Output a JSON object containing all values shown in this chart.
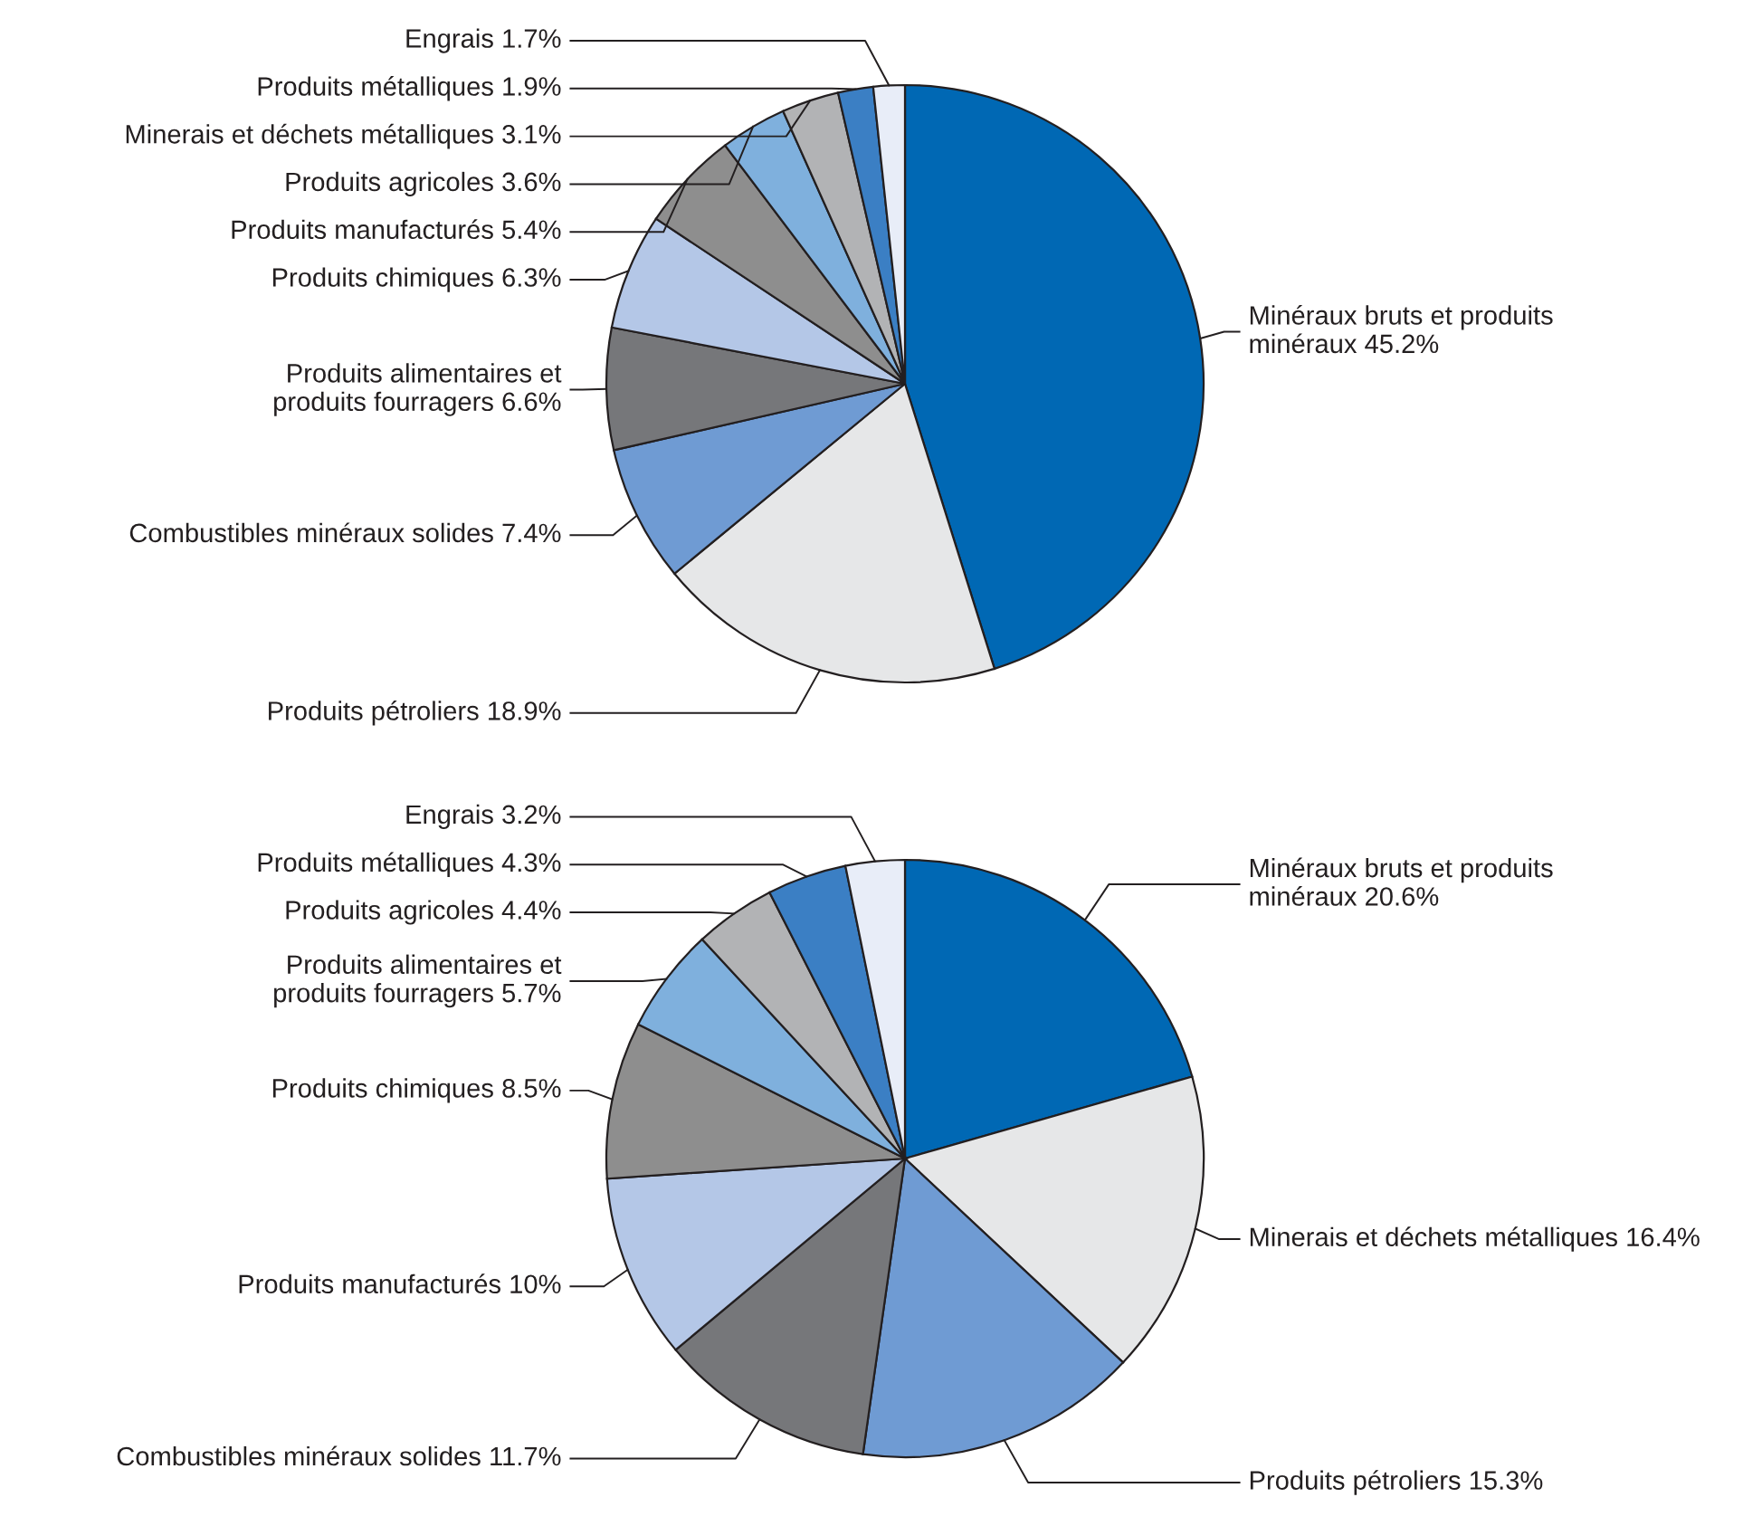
{
  "chart_data": [
    {
      "type": "pie",
      "categories": [
        "Minéraux bruts et produits\nminéraux",
        "Produits pétroliers",
        "Combustibles minéraux solides",
        "Produits alimentaires et\nproduits fourragers",
        "Produits chimiques",
        "Produits manufacturés",
        "Produits agricoles",
        "Minerais et déchets métalliques",
        "Produits métalliques",
        "Engrais"
      ],
      "values": [
        45.2,
        18.9,
        7.4,
        6.6,
        6.3,
        5.4,
        3.6,
        3.1,
        1.9,
        1.7
      ],
      "value_labels": [
        "45.2%",
        "18.9%",
        "7.4%",
        "6.6%",
        "6.3%",
        "5.4%",
        "3.6%",
        "3.1%",
        "1.9%",
        "1.7%"
      ],
      "colors": [
        "#0068b4",
        "#e6e7e8",
        "#6f9bd3",
        "#76777a",
        "#b4c7e7",
        "#8e8e8e",
        "#7fb0dd",
        "#b2b3b5",
        "#3b7fc4",
        "#e8edf8"
      ]
    },
    {
      "type": "pie",
      "categories": [
        "Minéraux bruts et produits\nminéraux",
        "Minerais et déchets métalliques",
        "Produits pétroliers",
        "Combustibles minéraux solides",
        "Produits manufacturés",
        "Produits chimiques",
        "Produits alimentaires et\nproduits fourragers",
        "Produits agricoles",
        "Produits métalliques",
        "Engrais"
      ],
      "values": [
        20.6,
        16.4,
        15.3,
        11.7,
        10,
        8.5,
        5.7,
        4.4,
        4.3,
        3.2
      ],
      "value_labels": [
        "20.6%",
        "16.4%",
        "15.3%",
        "11.7%",
        "10%",
        "8.5%",
        "5.7%",
        "4.4%",
        "4.3%",
        "3.2%"
      ],
      "colors": [
        "#0068b4",
        "#e6e7e8",
        "#6f9bd3",
        "#76777a",
        "#b4c7e7",
        "#8e8e8e",
        "#7fb0dd",
        "#b2b3b5",
        "#3b7fc4",
        "#e8edf8"
      ]
    }
  ]
}
